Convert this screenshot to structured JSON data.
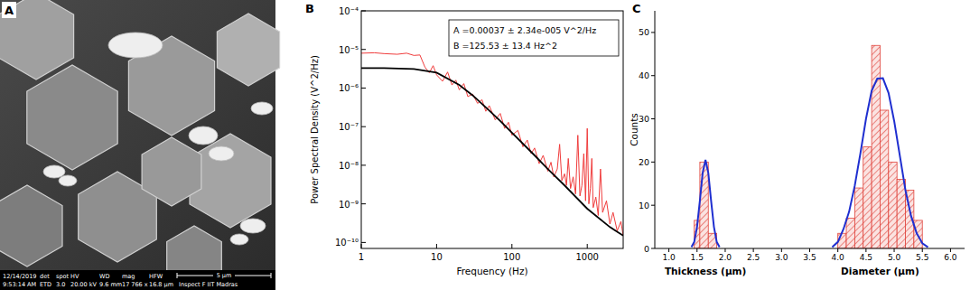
{
  "image": {
    "title": "A",
    "info_bar": {
      "date": "12/14/2019",
      "time": "9:53:14 AM",
      "columns": [
        [
          "det",
          "ETD"
        ],
        [
          "spot",
          "3.0"
        ],
        [
          "HV",
          "20.00 kV"
        ],
        [
          "WD",
          "9.6 mm"
        ],
        [
          "mag",
          "17 766 x"
        ],
        [
          "HFW",
          "16.8 µm"
        ]
      ],
      "scale_bar": "5 µm",
      "instrument": "Inspect F IIT Madras"
    }
  },
  "chart_data": [
    {
      "type": "line",
      "title": "B",
      "x_label": "Frequency (Hz)",
      "y_label": "Power Spectral Density (V^2/Hz)",
      "log": true,
      "annotations": [
        "A =0.00037 ± 2.34e-005 V^2/Hz",
        "B =125.53 ± 13.4 Hz^2"
      ],
      "xlim": [
        1,
        3000
      ],
      "xticks": [
        1,
        10,
        100,
        1000
      ],
      "ylim": [
        7e-11,
        0.0001
      ],
      "yticks": [
        {
          "value": 0.0001,
          "label": "10⁻⁴"
        },
        {
          "value": 1e-05,
          "label": "10⁻⁵"
        },
        {
          "value": 1e-06,
          "label": "10⁻⁶"
        },
        {
          "value": 1e-07,
          "label": "10⁻⁷"
        },
        {
          "value": 1e-08,
          "label": "10⁻⁸"
        },
        {
          "value": 1e-09,
          "label": "10⁻⁹"
        },
        {
          "value": 1e-10,
          "label": "10⁻¹⁰"
        }
      ],
      "series": [
        {
          "type": "line",
          "color": "#f03c3c",
          "x": [
            1,
            1.5,
            2,
            3,
            4,
            5,
            6,
            7,
            8,
            9,
            10,
            12,
            14,
            16,
            18,
            20,
            23,
            26,
            30,
            35,
            40,
            45,
            50,
            60,
            70,
            80,
            90,
            100,
            120,
            140,
            160,
            180,
            200,
            230,
            260,
            300,
            330,
            360,
            400,
            430,
            460,
            500,
            530,
            560,
            600,
            650,
            700,
            750,
            800,
            850,
            900,
            950,
            1000,
            1050,
            1100,
            1150,
            1200,
            1300,
            1400,
            1500,
            1600,
            1800,
            2000,
            2200,
            2500,
            2800,
            3000
          ],
          "values": [
            8e-06,
            8.2e-06,
            7.8e-06,
            7.5e-06,
            8e-06,
            7e-06,
            7.2e-06,
            3.5e-06,
            2.5e-06,
            3.8e-06,
            2.2e-06,
            1.5e-06,
            2.6e-06,
            1.2e-06,
            1.6e-06,
            9e-07,
            1.3e-06,
            6e-07,
            7e-07,
            4e-07,
            5e-07,
            2.5e-07,
            3.5e-07,
            1.5e-07,
            2.2e-07,
            9e-08,
            1.3e-07,
            6e-08,
            8e-08,
            3e-08,
            4.5e-08,
            2e-08,
            2.8e-08,
            1.1e-08,
            1.8e-08,
            7e-09,
            1.2e-08,
            5e-09,
            8e-09,
            3.5e-08,
            4e-09,
            6e-09,
            3e-09,
            1.5e-08,
            2.5e-09,
            5e-09,
            1.8e-09,
            6e-08,
            1.6e-09,
            3e-09,
            2e-08,
            1.2e-09,
            9e-08,
            1e-09,
            2.5e-09,
            1.5e-08,
            8e-10,
            1.5e-09,
            5e-10,
            8e-09,
            6e-10,
            1.2e-09,
            3e-10,
            6e-10,
            2e-10,
            3.5e-10,
            1.5e-10
          ]
        },
        {
          "type": "line",
          "color": "#000000",
          "x": [
            1,
            2,
            5,
            10,
            20,
            30,
            50,
            70,
            100,
            200,
            300,
            500,
            1000,
            2000,
            3000
          ],
          "values": [
            3.3e-06,
            3.3e-06,
            3.1e-06,
            2.5e-06,
            1.2e-06,
            6.5e-07,
            2.6e-07,
            1.4e-07,
            7e-08,
            1.8e-08,
            8e-09,
            3e-09,
            7.5e-10,
            2.5e-10,
            1.5e-10
          ]
        }
      ]
    },
    {
      "type": "histogram",
      "title": "C",
      "y_label": "Counts",
      "annotations": [
        {
          "text": "Thickness (µm)",
          "x": 1.65
        },
        {
          "text": "Diameter (µm)",
          "x": 4.75
        }
      ],
      "xlim": [
        0.75,
        6.25
      ],
      "xticks": [
        {
          "value": 1,
          "label": "1.0"
        },
        1.5,
        {
          "value": 2,
          "label": "2.0"
        },
        2.5,
        {
          "value": 3,
          "label": "3.0"
        },
        3.5,
        {
          "value": 4,
          "label": "4.0"
        },
        4.5,
        {
          "value": 5,
          "label": "5.0"
        },
        5.5,
        {
          "value": 6,
          "label": "6.0"
        }
      ],
      "ylim": [
        0,
        55
      ],
      "yticks": [
        0,
        10,
        20,
        30,
        40,
        50
      ],
      "series": [
        {
          "type": "bar",
          "color": "#e0443c",
          "bins": [
            1.45,
            1.55,
            1.7,
            1.85
          ],
          "values": [
            6.5,
            20,
            3.5
          ]
        },
        {
          "type": "bar",
          "color": "#e0443c",
          "bins": [
            4.0,
            4.15,
            4.3,
            4.45,
            4.6,
            4.75,
            4.9,
            5.05,
            5.2,
            5.35,
            5.5
          ],
          "values": [
            3.5,
            7,
            14,
            23.5,
            47,
            32,
            20,
            16,
            13.5,
            6.5
          ]
        },
        {
          "type": "line",
          "color": "#1f2fd0",
          "x": [
            1.4,
            1.45,
            1.5,
            1.55,
            1.6,
            1.65,
            1.7,
            1.75,
            1.8,
            1.85,
            1.9
          ],
          "values": [
            0.3,
            1.5,
            5,
            11,
            17.5,
            20.5,
            17.5,
            11,
            5,
            1.5,
            0.3
          ]
        },
        {
          "type": "line",
          "color": "#1f2fd0",
          "x": [
            3.9,
            4.0,
            4.1,
            4.2,
            4.3,
            4.4,
            4.5,
            4.6,
            4.7,
            4.8,
            4.9,
            5.0,
            5.1,
            5.2,
            5.3,
            5.4,
            5.5,
            5.6
          ],
          "values": [
            0.3,
            1.5,
            4.5,
            8.5,
            14.5,
            22,
            30,
            36.5,
            39.3,
            39.4,
            36,
            29.5,
            21.5,
            13.5,
            7.5,
            3.5,
            1.2,
            0.3
          ]
        }
      ]
    }
  ]
}
